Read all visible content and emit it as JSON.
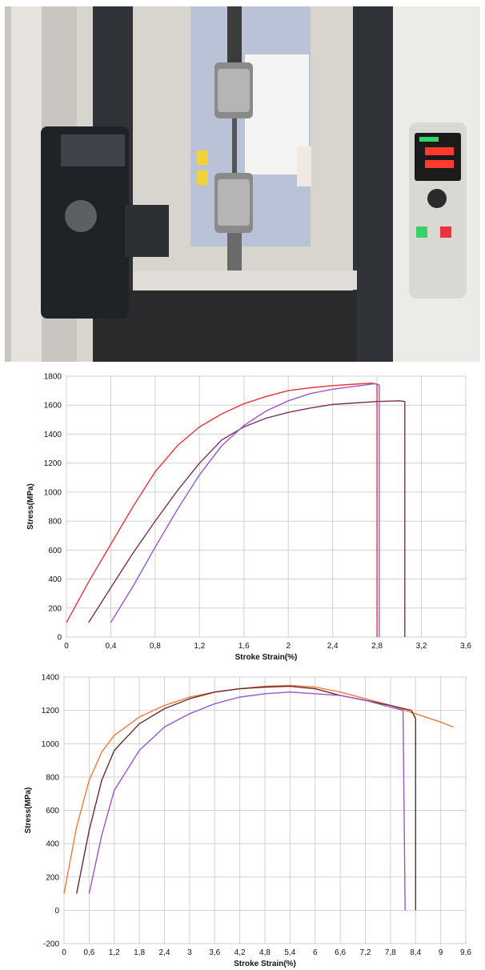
{
  "photo": {
    "description_icons": [
      "tensile-testing-machine",
      "video-extensometer-camera",
      "control-panel"
    ],
    "colors": {
      "wall": "#d8d4ce",
      "frame": "#e9e7e4",
      "column": "#3a3d42",
      "panel": "#b9c2d6",
      "base": "#2a2a2c",
      "display_red": "#ff3b2e",
      "display_green": "#35d36a"
    }
  },
  "chart_data": [
    {
      "type": "line",
      "title": "",
      "xlabel": "Stroke Strain(%)",
      "ylabel": "Stress(MPa)",
      "xlim": [
        0,
        3.6
      ],
      "ylim": [
        0,
        1800
      ],
      "x_ticks": [
        "0",
        "0,4",
        "0,8",
        "1,2",
        "1,6",
        "2",
        "2,4",
        "2,8",
        "3,2",
        "3,6"
      ],
      "x_tick_values": [
        0,
        0.4,
        0.8,
        1.2,
        1.6,
        2.0,
        2.4,
        2.8,
        3.2,
        3.6
      ],
      "y_ticks": [
        "0",
        "200",
        "400",
        "600",
        "800",
        "1000",
        "1200",
        "1400",
        "1600",
        "1800"
      ],
      "y_tick_values": [
        0,
        200,
        400,
        600,
        800,
        1000,
        1200,
        1400,
        1600,
        1800
      ],
      "grid": true,
      "series": [
        {
          "color": "#e8343a",
          "points": [
            [
              0.0,
              100
            ],
            [
              0.2,
              380
            ],
            [
              0.4,
              640
            ],
            [
              0.6,
              900
            ],
            [
              0.8,
              1140
            ],
            [
              1.0,
              1320
            ],
            [
              1.2,
              1450
            ],
            [
              1.4,
              1540
            ],
            [
              1.6,
              1610
            ],
            [
              1.8,
              1660
            ],
            [
              2.0,
              1700
            ],
            [
              2.2,
              1720
            ],
            [
              2.4,
              1735
            ],
            [
              2.6,
              1745
            ],
            [
              2.75,
              1752
            ],
            [
              2.8,
              1745
            ],
            [
              2.8,
              0
            ]
          ]
        },
        {
          "color": "#7a2f57",
          "points": [
            [
              0.2,
              100
            ],
            [
              0.4,
              340
            ],
            [
              0.6,
              580
            ],
            [
              0.8,
              800
            ],
            [
              1.0,
              1010
            ],
            [
              1.2,
              1200
            ],
            [
              1.4,
              1360
            ],
            [
              1.6,
              1450
            ],
            [
              1.8,
              1510
            ],
            [
              2.0,
              1550
            ],
            [
              2.2,
              1580
            ],
            [
              2.4,
              1605
            ],
            [
              2.6,
              1615
            ],
            [
              2.8,
              1625
            ],
            [
              3.0,
              1630
            ],
            [
              3.05,
              1625
            ],
            [
              3.05,
              0
            ]
          ]
        },
        {
          "color": "#9b56c8",
          "points": [
            [
              0.4,
              100
            ],
            [
              0.6,
              350
            ],
            [
              0.8,
              620
            ],
            [
              1.0,
              880
            ],
            [
              1.2,
              1120
            ],
            [
              1.4,
              1320
            ],
            [
              1.6,
              1460
            ],
            [
              1.8,
              1560
            ],
            [
              2.0,
              1630
            ],
            [
              2.2,
              1680
            ],
            [
              2.4,
              1710
            ],
            [
              2.6,
              1730
            ],
            [
              2.78,
              1748
            ],
            [
              2.82,
              1740
            ],
            [
              2.82,
              0
            ]
          ]
        }
      ]
    },
    {
      "type": "line",
      "title": "",
      "xlabel": "Stroke Strain(%)",
      "ylabel": "Stress(MPa)",
      "xlim": [
        0,
        9.6
      ],
      "ylim": [
        -200,
        1400
      ],
      "x_ticks": [
        "0",
        "0,6",
        "1,2",
        "1,8",
        "2,4",
        "3",
        "3,6",
        "4,2",
        "4,8",
        "5,4",
        "6",
        "6,6",
        "7,2",
        "7,8",
        "8,4",
        "9",
        "9,6"
      ],
      "x_tick_values": [
        0,
        0.6,
        1.2,
        1.8,
        2.4,
        3.0,
        3.6,
        4.2,
        4.8,
        5.4,
        6.0,
        6.6,
        7.2,
        7.8,
        8.4,
        9.0,
        9.6
      ],
      "y_ticks": [
        "-200",
        "0",
        "200",
        "400",
        "600",
        "800",
        "1000",
        "1200",
        "1400"
      ],
      "y_tick_values": [
        -200,
        0,
        200,
        400,
        600,
        800,
        1000,
        1200,
        1400
      ],
      "grid": true,
      "series": [
        {
          "color": "#f07a3a",
          "points": [
            [
              0.0,
              100
            ],
            [
              0.3,
              500
            ],
            [
              0.6,
              780
            ],
            [
              0.9,
              950
            ],
            [
              1.2,
              1050
            ],
            [
              1.8,
              1160
            ],
            [
              2.4,
              1230
            ],
            [
              3.0,
              1280
            ],
            [
              3.6,
              1310
            ],
            [
              4.2,
              1330
            ],
            [
              4.8,
              1345
            ],
            [
              5.4,
              1350
            ],
            [
              6.0,
              1340
            ],
            [
              6.6,
              1310
            ],
            [
              7.2,
              1270
            ],
            [
              7.8,
              1230
            ],
            [
              8.4,
              1180
            ],
            [
              9.0,
              1130
            ],
            [
              9.3,
              1100
            ]
          ]
        },
        {
          "color": "#6a2a2a",
          "points": [
            [
              0.3,
              100
            ],
            [
              0.6,
              480
            ],
            [
              0.9,
              780
            ],
            [
              1.2,
              960
            ],
            [
              1.8,
              1120
            ],
            [
              2.4,
              1210
            ],
            [
              3.0,
              1270
            ],
            [
              3.6,
              1310
            ],
            [
              4.2,
              1330
            ],
            [
              4.8,
              1340
            ],
            [
              5.4,
              1345
            ],
            [
              6.0,
              1330
            ],
            [
              6.6,
              1290
            ],
            [
              7.2,
              1260
            ],
            [
              7.8,
              1230
            ],
            [
              8.3,
              1200
            ],
            [
              8.4,
              1150
            ],
            [
              8.4,
              0
            ]
          ]
        },
        {
          "color": "#9b56c8",
          "points": [
            [
              0.6,
              100
            ],
            [
              0.9,
              450
            ],
            [
              1.2,
              720
            ],
            [
              1.8,
              960
            ],
            [
              2.4,
              1100
            ],
            [
              3.0,
              1180
            ],
            [
              3.6,
              1240
            ],
            [
              4.2,
              1280
            ],
            [
              4.8,
              1300
            ],
            [
              5.4,
              1310
            ],
            [
              6.0,
              1300
            ],
            [
              6.6,
              1290
            ],
            [
              7.2,
              1260
            ],
            [
              7.8,
              1220
            ],
            [
              8.1,
              1200
            ],
            [
              8.15,
              0
            ]
          ]
        }
      ]
    }
  ]
}
